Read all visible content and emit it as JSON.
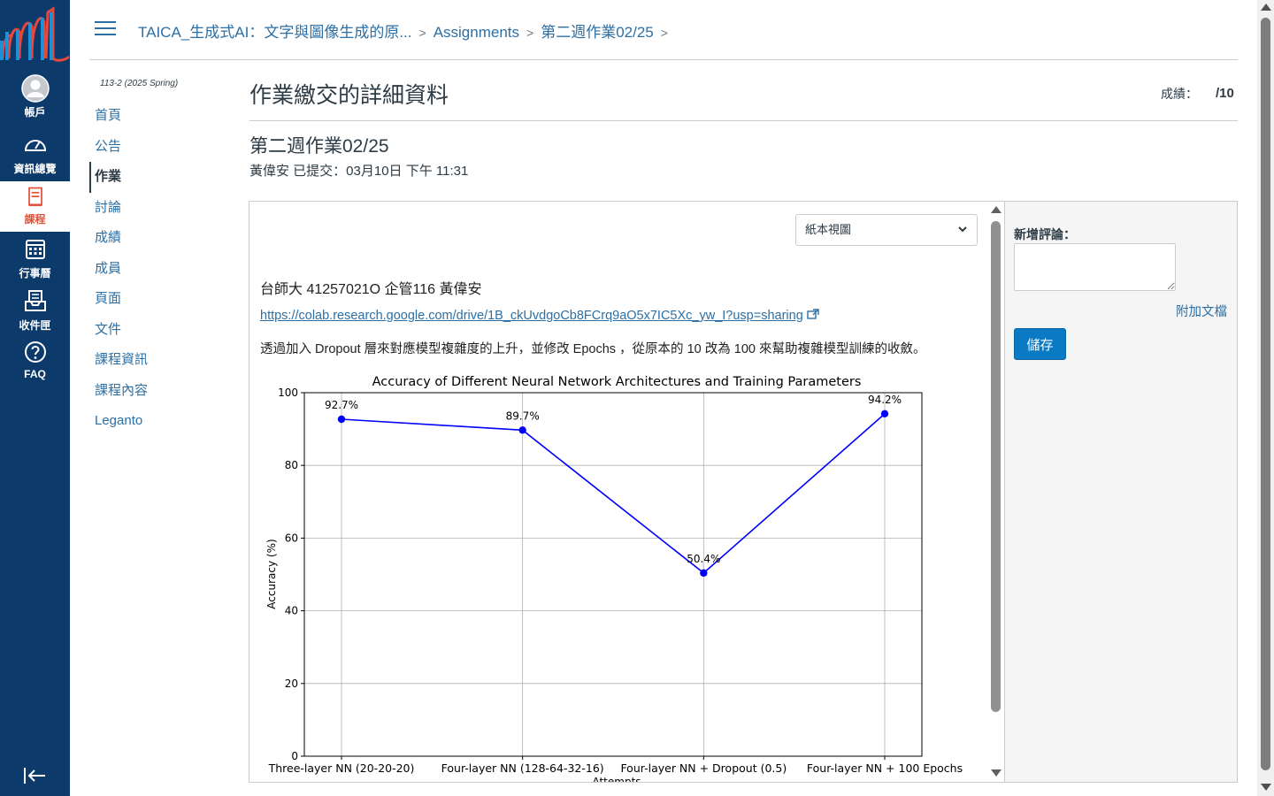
{
  "global_nav": {
    "items": [
      {
        "label": "帳戶",
        "icon": "account-avatar-icon"
      },
      {
        "label": "資訊總覽",
        "icon": "dashboard-icon"
      },
      {
        "label": "課程",
        "icon": "courses-icon"
      },
      {
        "label": "行事曆",
        "icon": "calendar-icon"
      },
      {
        "label": "收件匣",
        "icon": "inbox-icon"
      },
      {
        "label": "FAQ",
        "icon": "help-icon"
      }
    ]
  },
  "breadcrumb": {
    "course": "TAICA_生成式AI：文字與圖像生成的原...",
    "section": "Assignments",
    "assignment": "第二週作業02/25"
  },
  "course_nav": {
    "term": "113-2 (2025 Spring)",
    "items": [
      "首頁",
      "公告",
      "作業",
      "討論",
      "成績",
      "成員",
      "頁面",
      "文件",
      "課程資訊",
      "課程內容",
      "Leganto"
    ]
  },
  "main": {
    "title": "作業繳交的詳細資料",
    "grade_label": "成績：",
    "grade_out_of": "/10",
    "assignment_name": "第二週作業02/25",
    "submitted": "黃偉安 已提交：03月10日 下午 11:31"
  },
  "submission": {
    "view_select": "紙本視圖",
    "student_line": "台師大  41257021O 企管116 黃偉安",
    "link": "https://colab.research.google.com/drive/1B_ckUvdgoCb8FCrq9aO5x7IC5Xc_yw_I?usp=sharing",
    "description": "透過加入 Dropout 層來對應模型複雜度的上升，並修改 Epochs  ，從原本的 10 改為 100 來幫助複雜模型訓練的收斂。"
  },
  "comment_panel": {
    "label": "新增評論：",
    "attach": "附加文檔",
    "save": "儲存"
  },
  "chart_data": {
    "type": "line",
    "title": "Accuracy of Different Neural Network Architectures and Training Parameters",
    "xlabel": "Attempts",
    "ylabel": "Accuracy (%)",
    "categories": [
      "Three-layer NN (20-20-20)",
      "Four-layer NN (128-64-32-16)",
      "Four-layer NN + Dropout (0.5)",
      "Four-layer NN + 100 Epochs"
    ],
    "values": [
      92.7,
      89.7,
      50.4,
      94.2
    ],
    "value_labels": [
      "92.7%",
      "89.7%",
      "50.4%",
      "94.2%"
    ],
    "yticks": [
      0,
      20,
      40,
      60,
      80,
      100
    ],
    "ylim": [
      0,
      100
    ],
    "grid": true,
    "color": "#0000ff"
  }
}
